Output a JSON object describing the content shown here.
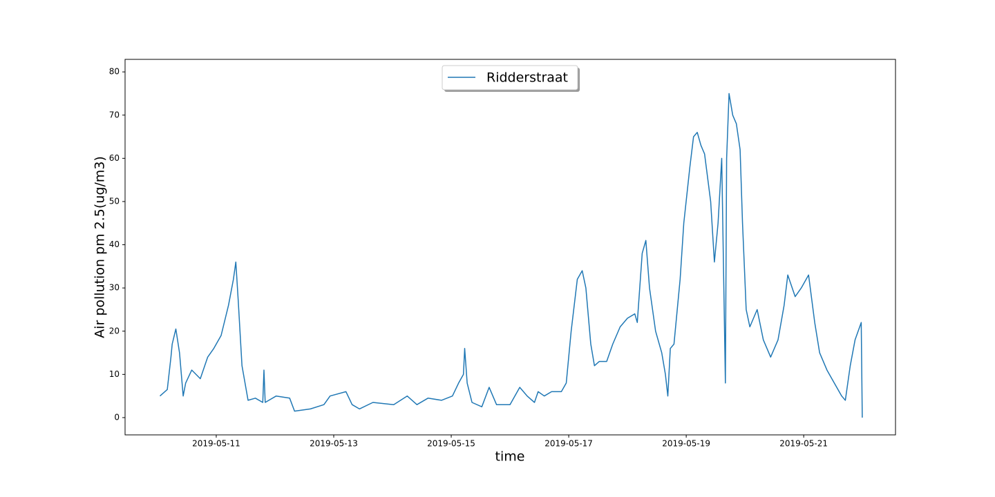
{
  "chart_data": {
    "type": "line",
    "xlabel": "time",
    "ylabel": "Air pollution pm 2.5(ug/m3)",
    "legend": "upper center",
    "xlim": [
      "2019-05-09 10:45",
      "2019-05-22 13:30"
    ],
    "xticks": [
      "2019-05-11",
      "2019-05-13",
      "2019-05-15",
      "2019-05-17",
      "2019-05-19",
      "2019-05-21"
    ],
    "ylim": [
      -4,
      82.9
    ],
    "yticks": [
      0,
      10,
      20,
      30,
      40,
      50,
      60,
      70,
      80
    ],
    "series": [
      {
        "name": "Ridderstraat",
        "color": "#1f77b4",
        "x": [
          "2019-05-10 01:00",
          "2019-05-10 04:00",
          "2019-05-10 05:30",
          "2019-05-10 06:00",
          "2019-05-10 07:30",
          "2019-05-10 09:00",
          "2019-05-10 10:30",
          "2019-05-10 11:30",
          "2019-05-10 14:00",
          "2019-05-10 17:30",
          "2019-05-10 20:30",
          "2019-05-10 23:00",
          "2019-05-11 02:00",
          "2019-05-11 05:00",
          "2019-05-11 07:00",
          "2019-05-11 08:00",
          "2019-05-11 09:00",
          "2019-05-11 10:30",
          "2019-05-11 13:00",
          "2019-05-11 16:00",
          "2019-05-11 19:00",
          "2019-05-11 19:30",
          "2019-05-11 20:00",
          "2019-05-12 00:30",
          "2019-05-12 06:00",
          "2019-05-12 08:00",
          "2019-05-12 14:30",
          "2019-05-12 20:00",
          "2019-05-12 22:30",
          "2019-05-13 05:00",
          "2019-05-13 07:30",
          "2019-05-13 10:30",
          "2019-05-13 16:00",
          "2019-05-14 00:30",
          "2019-05-14 06:00",
          "2019-05-14 10:00",
          "2019-05-14 14:30",
          "2019-05-14 20:00",
          "2019-05-15 00:30",
          "2019-05-15 03:00",
          "2019-05-15 05:00",
          "2019-05-15 05:30",
          "2019-05-15 06:30",
          "2019-05-15 08:30",
          "2019-05-15 12:30",
          "2019-05-15 15:30",
          "2019-05-15 18:30",
          "2019-05-16 00:00",
          "2019-05-16 04:00",
          "2019-05-16 07:00",
          "2019-05-16 10:00",
          "2019-05-16 11:30",
          "2019-05-16 14:00",
          "2019-05-16 17:00",
          "2019-05-16 21:00",
          "2019-05-16 23:00",
          "2019-05-17 01:00",
          "2019-05-17 03:30",
          "2019-05-17 05:30",
          "2019-05-17 07:00",
          "2019-05-17 09:00",
          "2019-05-17 10:30",
          "2019-05-17 12:30",
          "2019-05-17 15:30",
          "2019-05-17 18:00",
          "2019-05-17 21:00",
          "2019-05-18 00:00",
          "2019-05-18 03:00",
          "2019-05-18 04:00",
          "2019-05-18 06:00",
          "2019-05-18 07:30",
          "2019-05-18 09:00",
          "2019-05-18 11:30",
          "2019-05-18 14:00",
          "2019-05-18 15:30",
          "2019-05-18 16:30",
          "2019-05-18 17:30",
          "2019-05-18 19:00",
          "2019-05-18 21:30",
          "2019-05-18 23:00",
          "2019-05-19 01:30",
          "2019-05-19 03:00",
          "2019-05-19 04:30",
          "2019-05-19 06:00",
          "2019-05-19 07:30",
          "2019-05-19 10:00",
          "2019-05-19 11:30",
          "2019-05-19 13:00",
          "2019-05-19 14:30",
          "2019-05-19 16:00",
          "2019-05-19 16:30",
          "2019-05-19 17:30",
          "2019-05-19 19:00",
          "2019-05-19 20:30",
          "2019-05-19 22:00",
          "2019-05-19 23:00",
          "2019-05-20 00:30",
          "2019-05-20 02:00",
          "2019-05-20 05:00",
          "2019-05-20 07:30",
          "2019-05-20 10:30",
          "2019-05-20 13:30",
          "2019-05-20 16:00",
          "2019-05-20 17:30",
          "2019-05-20 20:30",
          "2019-05-20 23:00",
          "2019-05-21 02:00",
          "2019-05-21 04:30",
          "2019-05-21 06:30",
          "2019-05-21 09:30",
          "2019-05-21 12:30",
          "2019-05-21 15:30",
          "2019-05-21 17:00",
          "2019-05-21 19:00",
          "2019-05-21 21:00",
          "2019-05-21 23:30",
          "2019-05-21 23:55"
        ],
        "values": [
          5,
          6.5,
          14,
          17,
          20.5,
          15,
          5,
          8,
          11,
          9,
          14,
          16,
          19,
          26,
          32,
          36,
          27,
          12,
          4,
          4.5,
          3.5,
          11,
          3.5,
          5,
          4.5,
          1.5,
          2,
          3,
          5,
          6,
          3,
          2,
          3.5,
          3,
          5,
          3,
          4.5,
          4,
          5,
          8,
          10,
          16,
          8,
          3.5,
          2.5,
          7,
          3,
          3,
          7,
          5,
          3.5,
          6,
          5,
          6,
          6,
          8,
          20,
          32,
          34,
          30,
          17,
          12,
          13,
          13,
          17,
          21,
          23,
          24,
          22,
          38,
          41,
          30,
          20,
          15,
          10,
          5,
          16,
          17,
          32,
          45,
          58,
          65,
          66,
          63,
          61,
          50,
          36,
          45,
          60,
          8,
          60,
          75,
          70,
          68,
          62,
          45,
          25,
          21,
          25,
          18,
          14,
          18,
          26,
          33,
          28,
          30,
          33,
          22,
          15,
          11,
          8,
          5,
          4,
          12,
          18,
          22,
          0
        ]
      }
    ]
  }
}
